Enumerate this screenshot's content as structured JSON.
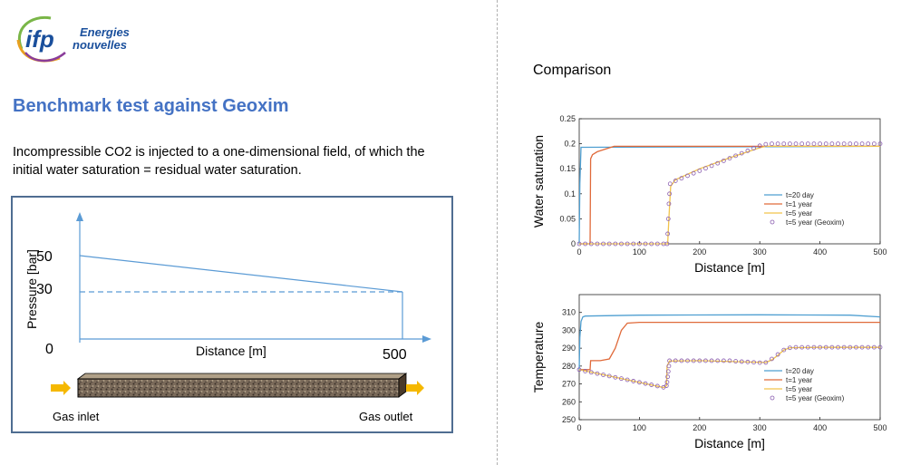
{
  "logo": {
    "line1": "Energies",
    "line2": "nouvelles",
    "mark": "ifp"
  },
  "title": "Benchmark test against Geoxim",
  "description": "Incompressible CO2 is injected to a one-dimensional field, of which the initial water saturation = residual water saturation.",
  "comparison_label": "Comparison",
  "schematic": {
    "ylabel": "Pressure  [bar]",
    "xlabel": "Distance [m]",
    "tick_50": "50",
    "tick_30": "30",
    "tick_0": "0",
    "tick_500": "500",
    "gas_inlet": "Gas inlet",
    "gas_outlet": "Gas outlet"
  },
  "chart_data": [
    {
      "type": "line",
      "ylabel": "Water saturation",
      "xlabel": "Distance [m]",
      "xlim": [
        0,
        500
      ],
      "ylim": [
        0,
        0.25
      ],
      "xticks": [
        "0",
        "100",
        "200",
        "300",
        "400",
        "500"
      ],
      "yticks": [
        "0",
        "0.05",
        "0.1",
        "0.15",
        "0.2",
        "0.25"
      ],
      "legend_position": "right",
      "series": [
        {
          "name": "t=20 day",
          "color": "#4f9fd1",
          "x": [
            0,
            1,
            3,
            500
          ],
          "y": [
            0,
            0.12,
            0.193,
            0.195
          ]
        },
        {
          "name": "t=1 year",
          "color": "#e06a3a",
          "x": [
            0,
            18,
            19,
            22,
            30,
            45,
            58,
            500
          ],
          "y": [
            0,
            0,
            0.17,
            0.178,
            0.184,
            0.19,
            0.195,
            0.195
          ]
        },
        {
          "name": "t=5 year",
          "color": "#f2c44b",
          "x": [
            0,
            147,
            149,
            152,
            160,
            200,
            250,
            300,
            310,
            500
          ],
          "y": [
            0,
            0,
            0.05,
            0.115,
            0.128,
            0.15,
            0.172,
            0.192,
            0.195,
            0.195
          ]
        },
        {
          "name": "t=5 year (Geoxim)",
          "color": "#8a5db0",
          "marker": "circle",
          "x": [
            0,
            10,
            20,
            30,
            40,
            50,
            60,
            70,
            80,
            90,
            100,
            110,
            120,
            130,
            140,
            146,
            147,
            148,
            149,
            150,
            151,
            160,
            170,
            180,
            190,
            200,
            210,
            220,
            230,
            240,
            250,
            260,
            270,
            280,
            290,
            300,
            310,
            320,
            330,
            340,
            350,
            360,
            370,
            380,
            390,
            400,
            410,
            420,
            430,
            440,
            450,
            460,
            470,
            480,
            490,
            500
          ],
          "y": [
            0,
            0,
            0,
            0,
            0,
            0,
            0,
            0,
            0,
            0,
            0,
            0,
            0,
            0,
            0,
            0,
            0.02,
            0.05,
            0.08,
            0.1,
            0.12,
            0.126,
            0.131,
            0.136,
            0.141,
            0.146,
            0.151,
            0.156,
            0.161,
            0.166,
            0.171,
            0.176,
            0.181,
            0.186,
            0.191,
            0.196,
            0.199,
            0.2,
            0.2,
            0.2,
            0.2,
            0.2,
            0.2,
            0.2,
            0.2,
            0.2,
            0.2,
            0.2,
            0.2,
            0.2,
            0.2,
            0.2,
            0.2,
            0.2,
            0.2,
            0.2
          ]
        }
      ]
    },
    {
      "type": "line",
      "ylabel": "Temperature",
      "xlabel": "Distance [m]",
      "xlim": [
        0,
        500
      ],
      "ylim": [
        250,
        320
      ],
      "xticks": [
        "0",
        "100",
        "200",
        "300",
        "400",
        "500"
      ],
      "yticks": [
        "250",
        "260",
        "270",
        "280",
        "290",
        "300",
        "310"
      ],
      "legend_position": "right",
      "series": [
        {
          "name": "t=20 day",
          "color": "#4f9fd1",
          "x": [
            0,
            1,
            3,
            6,
            10,
            100,
            300,
            450,
            500
          ],
          "y": [
            278,
            296,
            305,
            307.5,
            308,
            308.5,
            308.7,
            308.5,
            307.5
          ]
        },
        {
          "name": "t=1 year",
          "color": "#e06a3a",
          "x": [
            0,
            18,
            19,
            35,
            50,
            60,
            70,
            80,
            100,
            200,
            500
          ],
          "y": [
            278,
            278,
            283,
            283,
            284,
            290,
            300,
            304,
            304.5,
            304.5,
            304.5
          ]
        },
        {
          "name": "t=5 year",
          "color": "#f2c44b",
          "x": [
            0,
            140,
            145,
            146,
            150,
            200,
            310,
            320,
            330,
            340,
            350,
            400,
            500
          ],
          "y": [
            278,
            268,
            269,
            280,
            282.8,
            283,
            282,
            283.5,
            286,
            289,
            290.3,
            290.5,
            290.5
          ]
        },
        {
          "name": "t=5 year (Geoxim)",
          "color": "#8a5db0",
          "marker": "circle",
          "x": [
            0,
            10,
            20,
            30,
            40,
            50,
            60,
            70,
            80,
            90,
            100,
            110,
            120,
            130,
            140,
            145,
            146,
            147,
            148,
            149,
            150,
            160,
            170,
            180,
            190,
            200,
            210,
            220,
            230,
            240,
            250,
            260,
            270,
            280,
            290,
            300,
            310,
            320,
            330,
            340,
            350,
            360,
            370,
            380,
            390,
            400,
            410,
            420,
            430,
            440,
            450,
            460,
            470,
            480,
            490,
            500
          ],
          "y": [
            278,
            277.2,
            276.5,
            275.8,
            275.1,
            274.4,
            273.7,
            273,
            272.3,
            271.6,
            270.9,
            270.2,
            269.5,
            268.8,
            268.1,
            269,
            271,
            274,
            277,
            280,
            283,
            283,
            283,
            283,
            283,
            283,
            283,
            283,
            283,
            283,
            283,
            282.7,
            282.5,
            282.3,
            282.1,
            281.9,
            282,
            284,
            286.5,
            289,
            290.2,
            290.5,
            290.5,
            290.5,
            290.5,
            290.5,
            290.5,
            290.5,
            290.5,
            290.5,
            290.5,
            290.5,
            290.5,
            290.5,
            290.5,
            290.5
          ]
        }
      ]
    }
  ]
}
